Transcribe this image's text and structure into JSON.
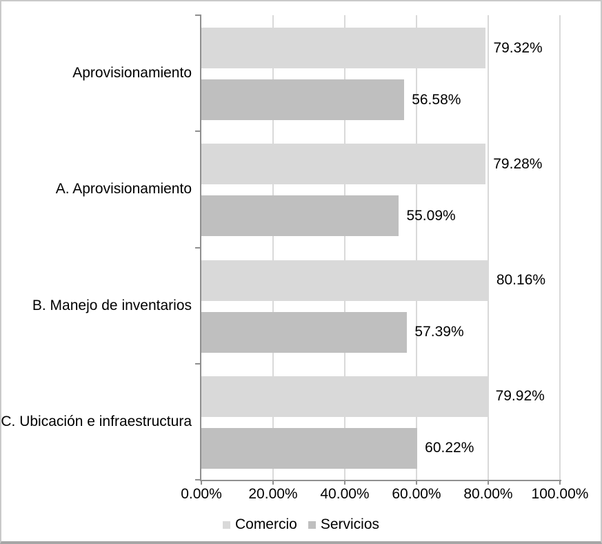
{
  "chart_data": {
    "type": "bar",
    "orientation": "horizontal",
    "title": "",
    "categories": [
      "Aprovisionamiento",
      "A. Aprovisionamiento",
      "B. Manejo de inventarios",
      "C. Ubicación e infraestructura"
    ],
    "series": [
      {
        "name": "Comercio",
        "color": "#d9d9d9",
        "values": [
          79.32,
          79.28,
          80.16,
          79.92
        ],
        "labels": [
          "79.32%",
          "79.28%",
          "80.16%",
          "79.92%"
        ]
      },
      {
        "name": "Servicios",
        "color": "#bfbfbf",
        "values": [
          56.58,
          55.09,
          57.39,
          60.22
        ],
        "labels": [
          "56.58%",
          "55.09%",
          "57.39%",
          "60.22%"
        ]
      }
    ],
    "x_axis": {
      "min": 0,
      "max": 100,
      "tick_values": [
        0,
        20,
        40,
        60,
        80,
        100
      ],
      "tick_labels": [
        "0.00%",
        "20.00%",
        "40.00%",
        "60.00%",
        "80.00%",
        "100.00%"
      ]
    },
    "grid": true,
    "legend": {
      "position": "bottom",
      "entries": [
        "Comercio",
        "Servicios"
      ]
    }
  },
  "colors": {
    "bar_comercio": "#d9d9d9",
    "bar_servicios": "#bfbfbf",
    "gridline": "#d9d9d9",
    "axis": "#8f8f8f",
    "text": "#000000",
    "frame": "#c9c9c9",
    "frame_bottom": "#a6a6a6",
    "background": "#ffffff"
  }
}
